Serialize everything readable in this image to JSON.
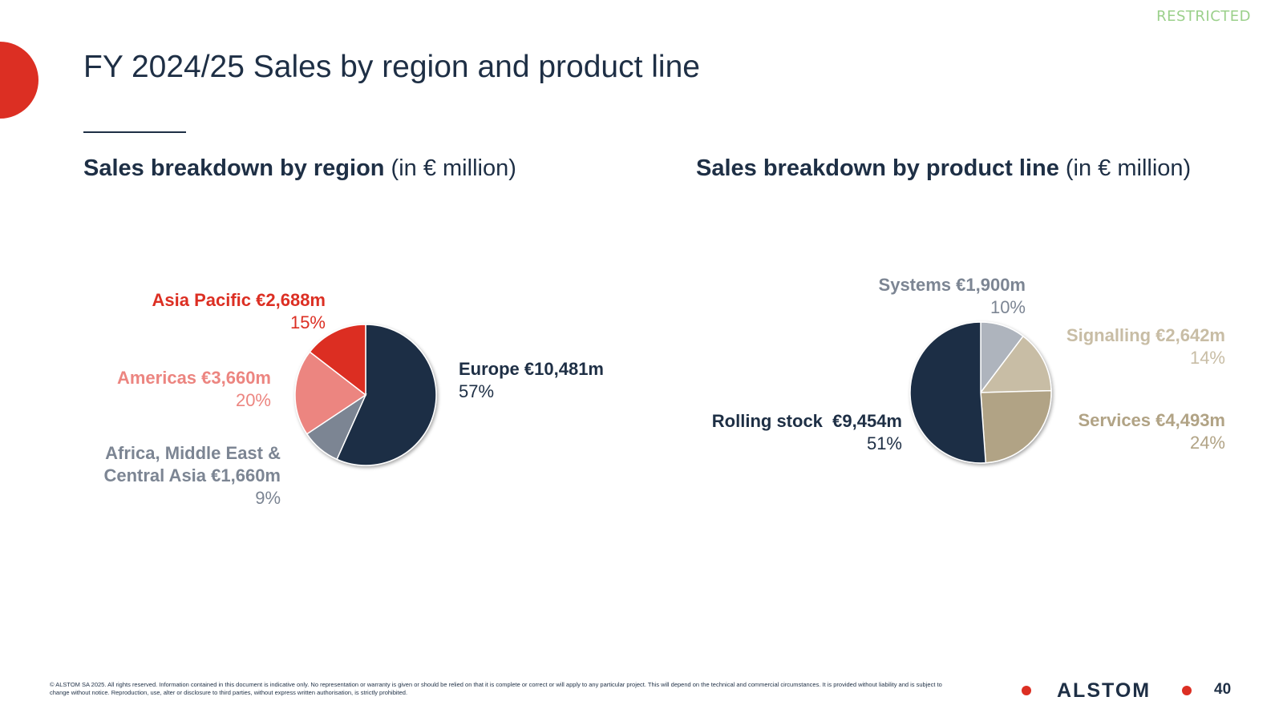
{
  "classification": "RESTRICTED",
  "title": "FY 2024/25 Sales by region and product line",
  "colors": {
    "accent_red": "#dc2f23",
    "navy": "#1e2f45",
    "restricted_green": "#9bd08b"
  },
  "chart_data": [
    {
      "type": "pie",
      "title_bold": "Sales breakdown by region",
      "title_rest": " (in € million)",
      "slices": [
        {
          "name": "Europe €10,481m",
          "value": 10481,
          "pct": "57%",
          "color": "#1e2f45"
        },
        {
          "name": "Africa, Middle East & Central Asia €1,660m",
          "value": 1660,
          "pct": "9%",
          "color": "#7c8593"
        },
        {
          "name": "Americas €3,660m",
          "value": 3660,
          "pct": "20%",
          "color": "#ec8580"
        },
        {
          "name": "Asia Pacific €2,688m",
          "value": 2688,
          "pct": "15%",
          "color": "#dc2f23"
        }
      ]
    },
    {
      "type": "pie",
      "title_bold": "Sales breakdown by product line",
      "title_rest": " (in € million)",
      "slices": [
        {
          "name": "Systems €1,900m",
          "value": 1900,
          "pct": "10%",
          "color": "#aeb4bd"
        },
        {
          "name": "Signalling €2,642m",
          "value": 2642,
          "pct": "14%",
          "color": "#c8bda5"
        },
        {
          "name": "Services €4,493m",
          "value": 4493,
          "pct": "24%",
          "color": "#b1a385"
        },
        {
          "name": "Rolling stock  €9,454m",
          "value": 9454,
          "pct": "51%",
          "color": "#1e2f45"
        }
      ]
    }
  ],
  "footer": {
    "disclaimer": "© ALSTOM SA 2025. All rights reserved. Information contained in this document is indicative only. No representation or warranty is given or should be relied on that it is complete or correct or will apply to any particular project. This will depend on the technical and commercial circumstances. It is provided without liability and is subject to change without notice. Reproduction, use, alter or disclosure to third parties, without express written authorisation, is strictly prohibited.",
    "logo_text": "ALSTOM",
    "page_number": "40"
  }
}
